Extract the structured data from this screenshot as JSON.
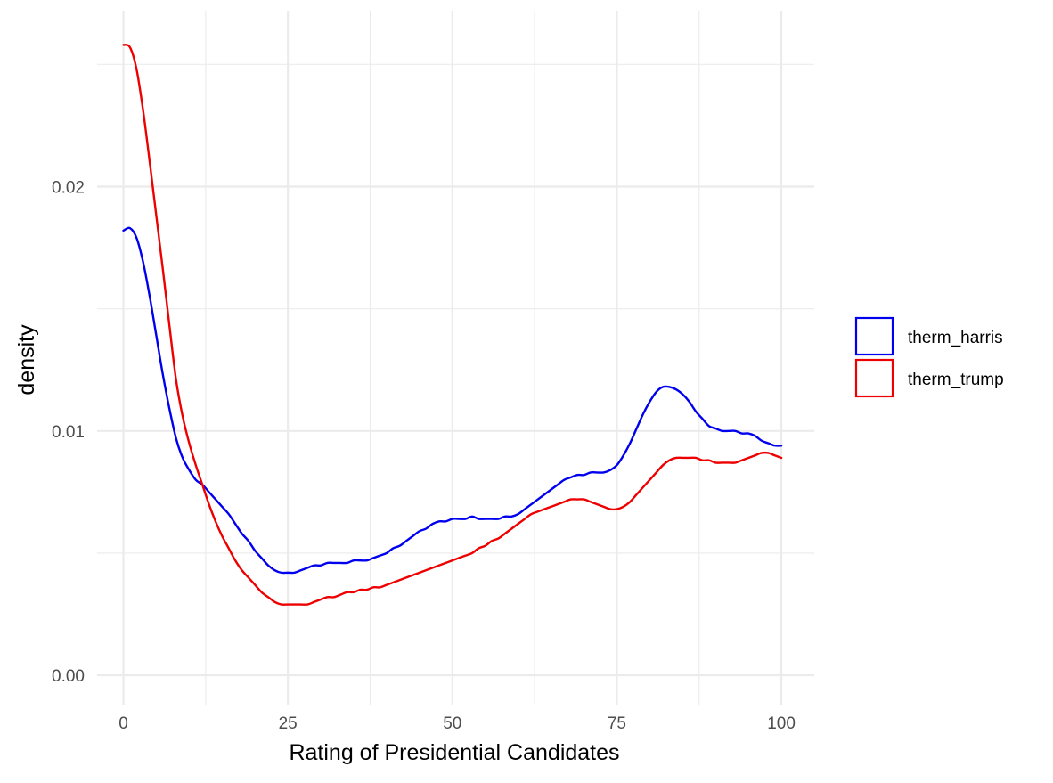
{
  "chart_data": {
    "type": "line",
    "title": "",
    "xlabel": "Rating of Presidential Candidates",
    "ylabel": "density",
    "xlim": [
      -4,
      105
    ],
    "ylim": [
      -0.0012,
      0.0272
    ],
    "x_ticks": [
      0,
      25,
      50,
      75,
      100
    ],
    "x_tick_labels": [
      "0",
      "25",
      "50",
      "75",
      "100"
    ],
    "x_minor_ticks": [
      12.5,
      37.5,
      62.5,
      87.5
    ],
    "y_ticks": [
      0,
      0.01,
      0.02
    ],
    "y_tick_labels": [
      "0.00",
      "0.01",
      "0.02"
    ],
    "y_minor_ticks": [
      0.005,
      0.015,
      0.025
    ],
    "grid": true,
    "legend_position": "right",
    "series": [
      {
        "name": "therm_harris",
        "color": "#0000ee",
        "x": [
          0,
          1,
          2,
          3,
          4,
          5,
          6,
          7,
          8,
          9,
          10,
          11,
          12,
          13,
          14,
          15,
          16,
          17,
          18,
          19,
          20,
          21,
          22,
          23,
          24,
          25,
          26,
          27,
          28,
          29,
          30,
          31,
          32,
          33,
          34,
          35,
          36,
          37,
          38,
          39,
          40,
          41,
          42,
          43,
          44,
          45,
          46,
          47,
          48,
          49,
          50,
          51,
          52,
          53,
          54,
          55,
          56,
          57,
          58,
          59,
          60,
          61,
          62,
          63,
          64,
          65,
          66,
          67,
          68,
          69,
          70,
          71,
          72,
          73,
          74,
          75,
          76,
          77,
          78,
          79,
          80,
          81,
          82,
          83,
          84,
          85,
          86,
          87,
          88,
          89,
          90,
          91,
          92,
          93,
          94,
          95,
          96,
          97,
          98,
          99,
          100
        ],
        "y": [
          0.0182,
          0.0183,
          0.0179,
          0.0169,
          0.0155,
          0.0139,
          0.0123,
          0.0109,
          0.0097,
          0.0089,
          0.0084,
          0.008,
          0.0078,
          0.0075,
          0.0072,
          0.0069,
          0.0066,
          0.0062,
          0.0058,
          0.0055,
          0.0051,
          0.0048,
          0.0045,
          0.0043,
          0.0042,
          0.0042,
          0.0042,
          0.0043,
          0.0044,
          0.0045,
          0.0045,
          0.0046,
          0.0046,
          0.0046,
          0.0046,
          0.0047,
          0.0047,
          0.0047,
          0.0048,
          0.0049,
          0.005,
          0.0052,
          0.0053,
          0.0055,
          0.0057,
          0.0059,
          0.006,
          0.0062,
          0.0063,
          0.0063,
          0.0064,
          0.0064,
          0.0064,
          0.0065,
          0.0064,
          0.0064,
          0.0064,
          0.0064,
          0.0065,
          0.0065,
          0.0066,
          0.0068,
          0.007,
          0.0072,
          0.0074,
          0.0076,
          0.0078,
          0.008,
          0.0081,
          0.0082,
          0.0082,
          0.0083,
          0.0083,
          0.0083,
          0.0084,
          0.0086,
          0.009,
          0.0095,
          0.0101,
          0.0107,
          0.0112,
          0.0116,
          0.0118,
          0.0118,
          0.0117,
          0.0115,
          0.0112,
          0.0108,
          0.0105,
          0.0102,
          0.0101,
          0.01,
          0.01,
          0.01,
          0.0099,
          0.0099,
          0.0098,
          0.0096,
          0.0095,
          0.0094,
          0.0094
        ]
      },
      {
        "name": "therm_trump",
        "color": "#ee0000",
        "x": [
          0,
          1,
          2,
          3,
          4,
          5,
          6,
          7,
          8,
          9,
          10,
          11,
          12,
          13,
          14,
          15,
          16,
          17,
          18,
          19,
          20,
          21,
          22,
          23,
          24,
          25,
          26,
          27,
          28,
          29,
          30,
          31,
          32,
          33,
          34,
          35,
          36,
          37,
          38,
          39,
          40,
          41,
          42,
          43,
          44,
          45,
          46,
          47,
          48,
          49,
          50,
          51,
          52,
          53,
          54,
          55,
          56,
          57,
          58,
          59,
          60,
          61,
          62,
          63,
          64,
          65,
          66,
          67,
          68,
          69,
          70,
          71,
          72,
          73,
          74,
          75,
          76,
          77,
          78,
          79,
          80,
          81,
          82,
          83,
          84,
          85,
          86,
          87,
          88,
          89,
          90,
          91,
          92,
          93,
          94,
          95,
          96,
          97,
          98,
          99,
          100
        ],
        "y": [
          0.0258,
          0.0257,
          0.0248,
          0.0231,
          0.021,
          0.0188,
          0.0166,
          0.0143,
          0.0121,
          0.0106,
          0.0095,
          0.0086,
          0.0078,
          0.007,
          0.0063,
          0.0057,
          0.0052,
          0.0047,
          0.0043,
          0.004,
          0.0037,
          0.0034,
          0.0032,
          0.003,
          0.0029,
          0.0029,
          0.0029,
          0.0029,
          0.0029,
          0.003,
          0.0031,
          0.0032,
          0.0032,
          0.0033,
          0.0034,
          0.0034,
          0.0035,
          0.0035,
          0.0036,
          0.0036,
          0.0037,
          0.0038,
          0.0039,
          0.004,
          0.0041,
          0.0042,
          0.0043,
          0.0044,
          0.0045,
          0.0046,
          0.0047,
          0.0048,
          0.0049,
          0.005,
          0.0052,
          0.0053,
          0.0055,
          0.0056,
          0.0058,
          0.006,
          0.0062,
          0.0064,
          0.0066,
          0.0067,
          0.0068,
          0.0069,
          0.007,
          0.0071,
          0.0072,
          0.0072,
          0.0072,
          0.0071,
          0.007,
          0.0069,
          0.0068,
          0.0068,
          0.0069,
          0.0071,
          0.0074,
          0.0077,
          0.008,
          0.0083,
          0.0086,
          0.0088,
          0.0089,
          0.0089,
          0.0089,
          0.0089,
          0.0088,
          0.0088,
          0.0087,
          0.0087,
          0.0087,
          0.0087,
          0.0088,
          0.0089,
          0.009,
          0.0091,
          0.0091,
          0.009,
          0.0089
        ]
      }
    ]
  }
}
